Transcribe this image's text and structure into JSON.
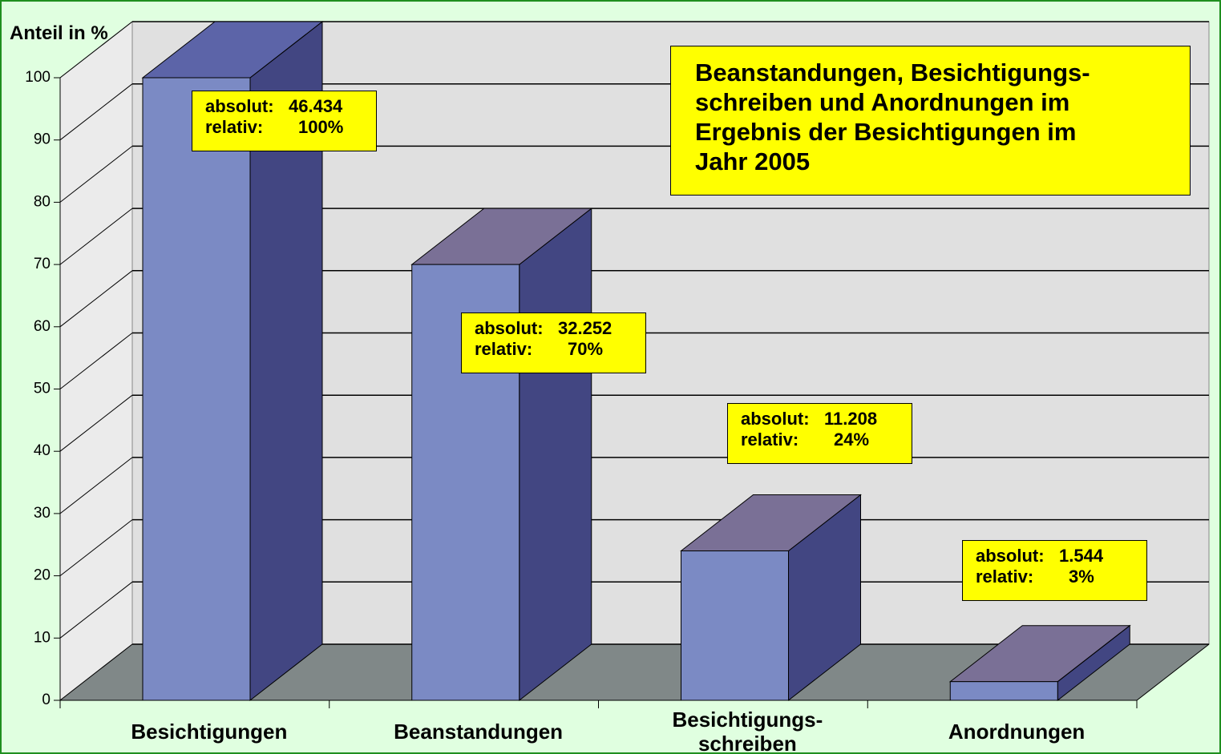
{
  "chart_data": {
    "type": "bar3d",
    "title": [
      "Beanstandungen, Besichtigungs-",
      "schreiben und Anordnungen im",
      "Ergebnis der Besichtigungen im",
      "Jahr 2005"
    ],
    "y_label": "Anteil in %",
    "categories": [
      "Besichtigungen",
      "Beanstandungen",
      "Besichtigungs-\nschreiben",
      "Anordnungen"
    ],
    "values": [
      100,
      70,
      24,
      3
    ],
    "value_labels": [
      "100%",
      "70%",
      "24%",
      "3%"
    ],
    "absolute_values": [
      46434,
      32252,
      11208,
      1544
    ],
    "absolute_labels": [
      "46.434",
      "32.252",
      "11.208",
      "1.544"
    ],
    "absolute_prefix": "absolut:",
    "relative_prefix": "relativ:",
    "ylim": [
      0,
      100
    ],
    "yticks": [
      0,
      10,
      20,
      30,
      40,
      50,
      60,
      70,
      80,
      90,
      100
    ],
    "grid": true,
    "color": "#7b8ac4"
  }
}
